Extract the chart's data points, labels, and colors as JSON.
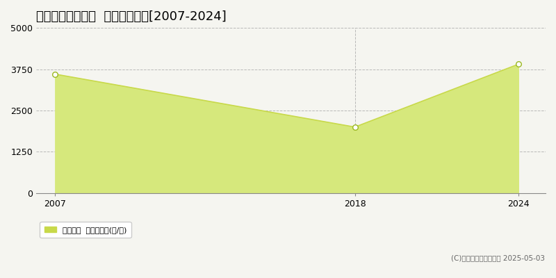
{
  "title": "多気郡大台町佐原  林地価格推移[2007-2024]",
  "years": [
    2007,
    2018,
    2024
  ],
  "values": [
    3600,
    2000,
    3900
  ],
  "line_color": "#c8d94a",
  "fill_color": "#d6e87c",
  "fill_alpha": 1.0,
  "marker_color": "#ffffff",
  "marker_edge_color": "#9ab820",
  "ylim": [
    0,
    5000
  ],
  "yticks": [
    0,
    1250,
    2500,
    3750,
    5000
  ],
  "xlim": [
    2006.3,
    2025.0
  ],
  "xticks": [
    2007,
    2018,
    2024
  ],
  "grid_color": "#aaaaaa",
  "grid_style": "--",
  "bg_color": "#f5f5f0",
  "legend_label": "林地価格  平均坪単価(円/坪)",
  "legend_marker_color": "#c8d94a",
  "copyright_text": "(C)土地価格ドットコム 2025-05-03",
  "title_fontsize": 13,
  "axis_fontsize": 9,
  "legend_fontsize": 8,
  "copyright_fontsize": 7.5
}
